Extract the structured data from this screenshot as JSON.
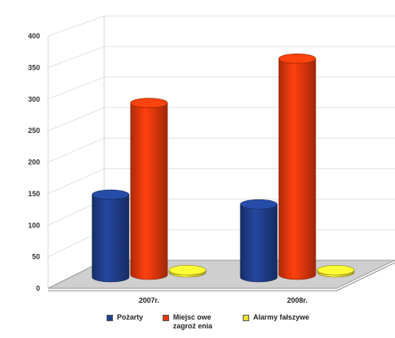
{
  "chart_data": {
    "type": "bar",
    "style": "3d-cylinder",
    "categories": [
      "2007r.",
      "2008r."
    ],
    "series": [
      {
        "name": "Pożarty",
        "values": [
          145,
          128
        ],
        "color": "#1f3f8c"
      },
      {
        "name": "Miejscowe zagrożenia",
        "values": [
          302,
          380
        ],
        "color": "#e8380c"
      },
      {
        "name": "Alarmy fałszywe",
        "values": [
          4,
          4
        ],
        "color": "#f2dc2e"
      }
    ],
    "yticks": [
      0,
      50,
      100,
      150,
      200,
      250,
      300,
      350,
      400
    ],
    "ylim": [
      0,
      400
    ],
    "grid": true,
    "legend_position": "bottom",
    "title": "",
    "xlabel": "",
    "ylabel": ""
  },
  "legend": {
    "items": [
      {
        "label_lines": [
          "Pożarty"
        ]
      },
      {
        "label_lines": [
          "Miejsc owe",
          "zagroż enia"
        ]
      },
      {
        "label_lines": [
          "Alarmy fałszywe"
        ]
      }
    ]
  }
}
